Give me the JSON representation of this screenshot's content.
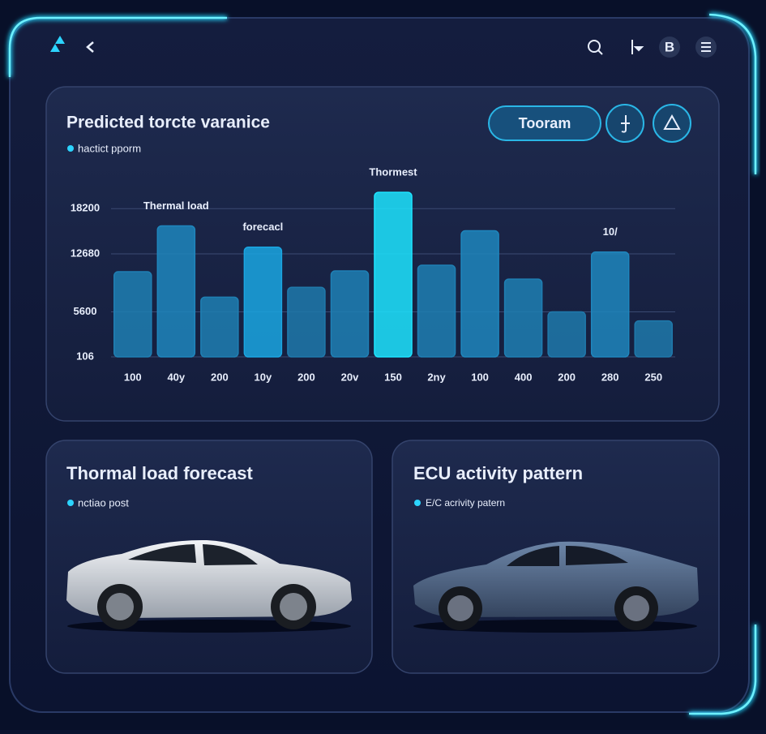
{
  "header": {
    "avatar_letter": "B"
  },
  "chart_data": {
    "type": "bar",
    "title": "Predicted torcte varanice",
    "subtitle": "hactict pporm",
    "categories": [
      "100",
      "40y",
      "200",
      "10y",
      "200",
      "20v",
      "150",
      "2ny",
      "100",
      "400",
      "200",
      "280",
      "250"
    ],
    "values": [
      10500,
      16100,
      7400,
      13500,
      8600,
      10600,
      20200,
      11300,
      15500,
      9600,
      5600,
      12900,
      4500
    ],
    "colors": [
      "#1f7fb3",
      "#1f86bd",
      "#1f7fb3",
      "#1aa6e2",
      "#1f79ab",
      "#1f80b5",
      "#1de4ff",
      "#1f7fb3",
      "#1f86bd",
      "#1f7fb3",
      "#1f79ab",
      "#1f86bd",
      "#1f79ab"
    ],
    "annotations": [
      {
        "text": "Thermal load",
        "index": 1
      },
      {
        "text": "forecacl",
        "index": 3
      },
      {
        "text": "Thormest",
        "index": 6
      },
      {
        "text": "10/",
        "index": 11
      }
    ],
    "ylim": [
      106,
      21000
    ],
    "yticks": [
      106,
      5600,
      12680,
      18200
    ],
    "grid": true,
    "button": "Tooram"
  },
  "panels": [
    {
      "title": "Thormal load forecast",
      "subtitle": "nctiao post"
    },
    {
      "title": "ECU activity pattern",
      "subtitle": "E/C acrivity patern"
    }
  ]
}
